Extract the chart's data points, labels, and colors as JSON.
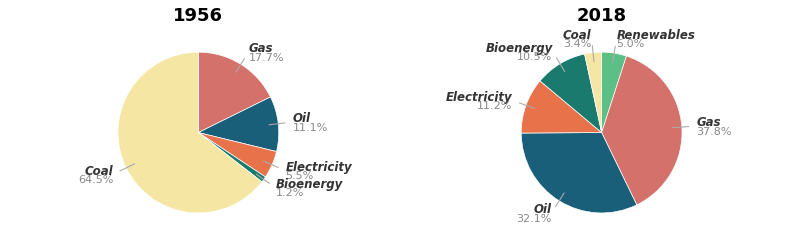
{
  "chart1": {
    "title": "1956",
    "labels": [
      "Gas",
      "Oil",
      "Electricity",
      "Bioenergy",
      "Coal"
    ],
    "values": [
      17.7,
      11.1,
      5.5,
      1.2,
      64.5
    ],
    "colors": [
      "#d4716a",
      "#1a5f7a",
      "#e8724a",
      "#1a7a6e",
      "#f5e6a3"
    ],
    "label_positions": {
      "Gas": "right",
      "Oil": "right",
      "Electricity": "right",
      "Bioenergy": "right",
      "Coal": "left"
    }
  },
  "chart2": {
    "title": "2018",
    "labels": [
      "Renewables",
      "Gas",
      "Oil",
      "Electricity",
      "Bioenergy",
      "Coal"
    ],
    "values": [
      5.0,
      37.8,
      32.1,
      11.2,
      10.5,
      3.4
    ],
    "colors": [
      "#5cbf85",
      "#d4716a",
      "#1a5f7a",
      "#e8724a",
      "#1a7a6e",
      "#f5e6a3"
    ],
    "label_positions": {
      "Renewables": "right_top",
      "Gas": "right",
      "Oil": "bottom",
      "Electricity": "left",
      "Bioenergy": "left",
      "Coal": "left"
    }
  },
  "background_color": "#ffffff",
  "label_color": "#333333",
  "pct_color": "#888888",
  "title_fontsize": 13,
  "label_fontsize": 8.5
}
